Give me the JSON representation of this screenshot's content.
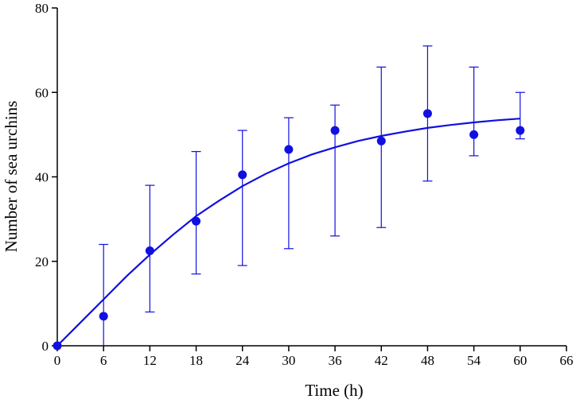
{
  "chart_data": {
    "type": "scatter",
    "xlabel": "Time (h)",
    "ylabel": "Number of sea urchins",
    "xlim": [
      0,
      66
    ],
    "ylim": [
      0,
      80
    ],
    "xticks": [
      0,
      6,
      12,
      18,
      24,
      30,
      36,
      42,
      48,
      54,
      60,
      66
    ],
    "yticks": [
      0,
      20,
      40,
      60,
      80
    ],
    "grid": false,
    "legend": "none",
    "colors": {
      "series": "#1010e0",
      "axis": "#000000"
    },
    "points": [
      {
        "x": 0,
        "y": 0,
        "err_low": 0,
        "err_high": 0
      },
      {
        "x": 6,
        "y": 7,
        "err_low": 0,
        "err_high": 24
      },
      {
        "x": 12,
        "y": 22.5,
        "err_low": 8,
        "err_high": 38
      },
      {
        "x": 18,
        "y": 29.5,
        "err_low": 17,
        "err_high": 46
      },
      {
        "x": 24,
        "y": 40.5,
        "err_low": 19,
        "err_high": 51
      },
      {
        "x": 30,
        "y": 46.5,
        "err_low": 23,
        "err_high": 54
      },
      {
        "x": 36,
        "y": 51,
        "err_low": 26,
        "err_high": 57
      },
      {
        "x": 42,
        "y": 48.5,
        "err_low": 28,
        "err_high": 66
      },
      {
        "x": 48,
        "y": 55,
        "err_low": 39,
        "err_high": 71
      },
      {
        "x": 54,
        "y": 50,
        "err_low": 45,
        "err_high": 66
      },
      {
        "x": 60,
        "y": 51,
        "err_low": 49,
        "err_high": 60
      }
    ],
    "fit_curve": {
      "x": [
        0,
        3,
        6,
        9,
        12,
        15,
        18,
        21,
        24,
        27,
        30,
        33,
        36,
        39,
        42,
        45,
        48,
        51,
        54,
        57,
        60
      ],
      "y": [
        0,
        5.5,
        11,
        16.5,
        21.6,
        26.3,
        30.7,
        34.4,
        37.8,
        40.7,
        43.2,
        45.3,
        47.0,
        48.5,
        49.7,
        50.7,
        51.6,
        52.3,
        52.9,
        53.4,
        53.8
      ]
    }
  }
}
